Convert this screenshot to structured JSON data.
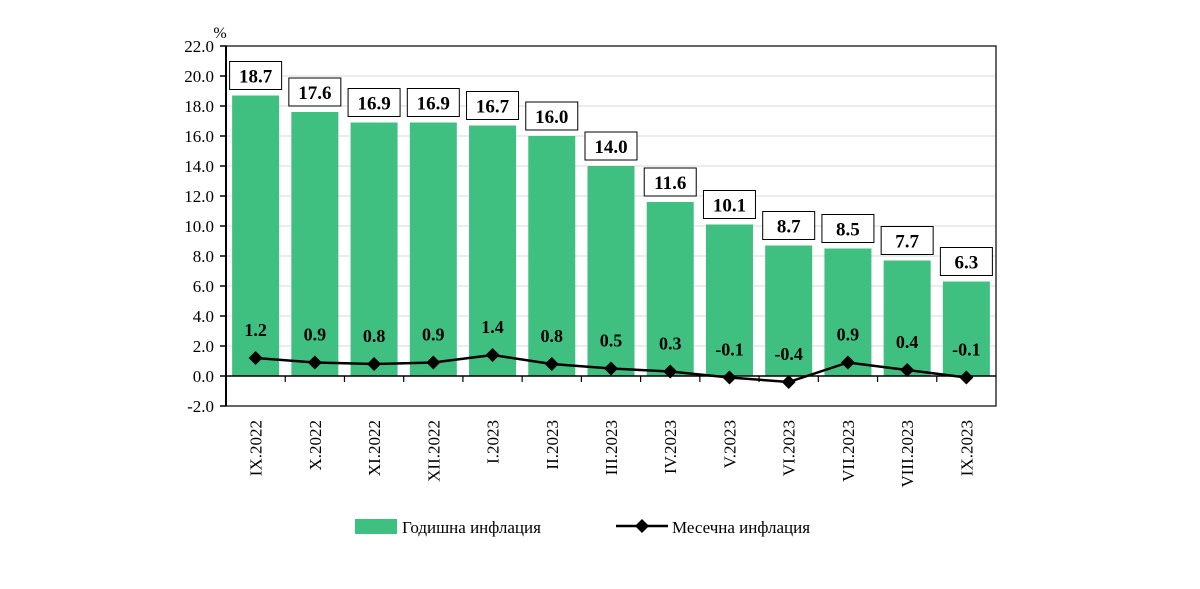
{
  "chart_data": {
    "type": "bar+line",
    "ylabel": "%",
    "ylim": [
      -2.0,
      22.0
    ],
    "yticks": [
      "22.0",
      "20.0",
      "18.0",
      "16.0",
      "14.0",
      "12.0",
      "10.0",
      "8.0",
      "6.0",
      "4.0",
      "2.0",
      "0.0",
      "-2.0"
    ],
    "grid": true,
    "legend_placement": "bottom",
    "categories": [
      "IX.2022",
      "X.2022",
      "XI.2022",
      "XII.2022",
      "I.2023",
      "II.2023",
      "III.2023",
      "IV.2023",
      "V.2023",
      "VI.2023",
      "VII.2023",
      "VIII.2023",
      "IX.2023"
    ],
    "series": [
      {
        "name": "Годишна инфлация",
        "type": "bar",
        "color": "#40C080",
        "values": [
          18.7,
          17.6,
          16.9,
          16.9,
          16.7,
          16.0,
          14.0,
          11.6,
          10.1,
          8.7,
          8.5,
          7.7,
          6.3
        ]
      },
      {
        "name": "Месечна инфлация",
        "type": "line",
        "color": "#000000",
        "values": [
          1.2,
          0.9,
          0.8,
          0.9,
          1.4,
          0.8,
          0.5,
          0.3,
          -0.1,
          -0.4,
          0.9,
          0.4,
          -0.1
        ]
      }
    ]
  }
}
